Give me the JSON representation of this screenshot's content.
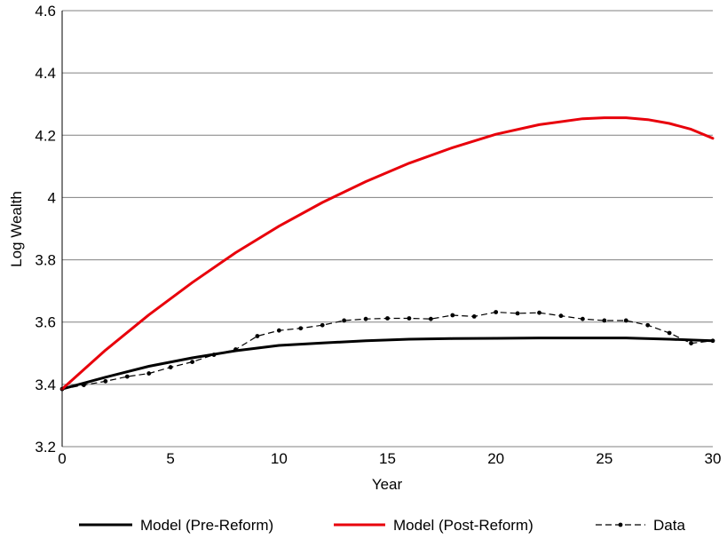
{
  "chart_data": {
    "type": "line",
    "title": "",
    "xlabel": "Year",
    "ylabel": "Log Wealth",
    "xlim": [
      0,
      30
    ],
    "ylim": [
      3.2,
      4.6
    ],
    "xticks": [
      0,
      5,
      10,
      15,
      20,
      25,
      30
    ],
    "xtick_labels": [
      "0",
      "5",
      "10",
      "15",
      "20",
      "25",
      "30"
    ],
    "yticks": [
      3.2,
      3.4,
      3.6,
      3.8,
      4.0,
      4.2,
      4.4,
      4.6
    ],
    "ytick_labels": [
      "3.2",
      "3.4",
      "3.6",
      "3.8",
      "4",
      "4.2",
      "4.4",
      "4.6"
    ],
    "grid": "horizontal",
    "legend_position": "bottom",
    "series": [
      {
        "name": "Model (Pre-Reform)",
        "color": "#000000",
        "style": "solid",
        "x": [
          0,
          2,
          4,
          6,
          8,
          10,
          12,
          14,
          16,
          18,
          20,
          22,
          24,
          26,
          28,
          30
        ],
        "y": [
          3.385,
          3.423,
          3.458,
          3.485,
          3.508,
          3.525,
          3.533,
          3.54,
          3.545,
          3.547,
          3.548,
          3.549,
          3.549,
          3.549,
          3.545,
          3.54
        ]
      },
      {
        "name": "Model (Post-Reform)",
        "color": "#e8000b",
        "style": "solid",
        "x": [
          0,
          2,
          4,
          6,
          8,
          10,
          12,
          14,
          16,
          18,
          20,
          22,
          24,
          25,
          26,
          27,
          28,
          29,
          30
        ],
        "y": [
          3.385,
          3.51,
          3.623,
          3.727,
          3.823,
          3.908,
          3.984,
          4.051,
          4.11,
          4.16,
          4.203,
          4.234,
          4.253,
          4.256,
          4.256,
          4.25,
          4.238,
          4.219,
          4.19
        ]
      },
      {
        "name": "Data",
        "color": "#000000",
        "style": "dashed-markers",
        "x": [
          0,
          1,
          2,
          3,
          4,
          5,
          6,
          7,
          8,
          9,
          10,
          11,
          12,
          13,
          14,
          15,
          16,
          17,
          18,
          19,
          20,
          21,
          22,
          23,
          24,
          25,
          26,
          27,
          28,
          29,
          30
        ],
        "y": [
          3.385,
          3.398,
          3.41,
          3.425,
          3.435,
          3.455,
          3.472,
          3.495,
          3.512,
          3.555,
          3.573,
          3.58,
          3.59,
          3.605,
          3.61,
          3.612,
          3.612,
          3.61,
          3.622,
          3.618,
          3.632,
          3.628,
          3.63,
          3.62,
          3.61,
          3.605,
          3.605,
          3.59,
          3.565,
          3.532,
          3.54
        ]
      }
    ]
  }
}
